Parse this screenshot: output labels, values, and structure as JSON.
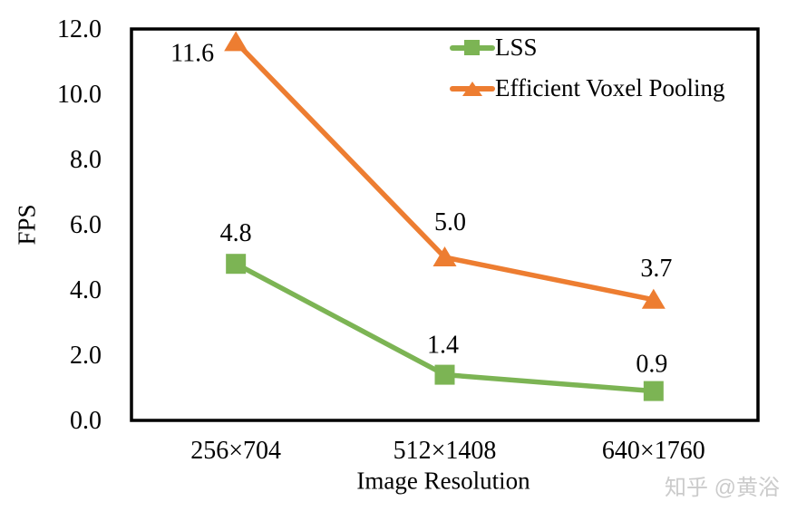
{
  "chart_data": {
    "type": "line",
    "title": "",
    "xlabel": "Image Resolution",
    "ylabel": "FPS",
    "categories": [
      "256×704",
      "512×1408",
      "640×1760"
    ],
    "series": [
      {
        "name": "LSS",
        "color": "#7CB454",
        "marker": "square",
        "values": [
          4.8,
          1.4,
          0.9
        ],
        "labels": [
          "4.8",
          "1.4",
          "0.9"
        ],
        "label_offsets": [
          [
            0,
            -34
          ],
          [
            -2,
            -33
          ],
          [
            -2,
            -30
          ]
        ]
      },
      {
        "name": "Efficient Voxel Pooling",
        "color": "#ED7D31",
        "marker": "triangle",
        "values": [
          11.6,
          5.0,
          3.7
        ],
        "labels": [
          "11.6",
          "5.0",
          "3.7"
        ],
        "label_offsets": [
          [
            -48,
            12
          ],
          [
            6,
            -39
          ],
          [
            3,
            -35
          ]
        ]
      }
    ],
    "ylim": [
      0,
      12
    ],
    "ytick_values": [
      0,
      2,
      4,
      6,
      8,
      10,
      12
    ],
    "yticks": [
      "0.0",
      "2.0",
      "4.0",
      "6.0",
      "8.0",
      "10.0",
      "12.0"
    ],
    "grid": false,
    "legend_position": "top-center-inside",
    "axis_color": "#000000"
  },
  "watermark": {
    "text": "知乎 @黄浴",
    "color": "#cbcbcb"
  }
}
